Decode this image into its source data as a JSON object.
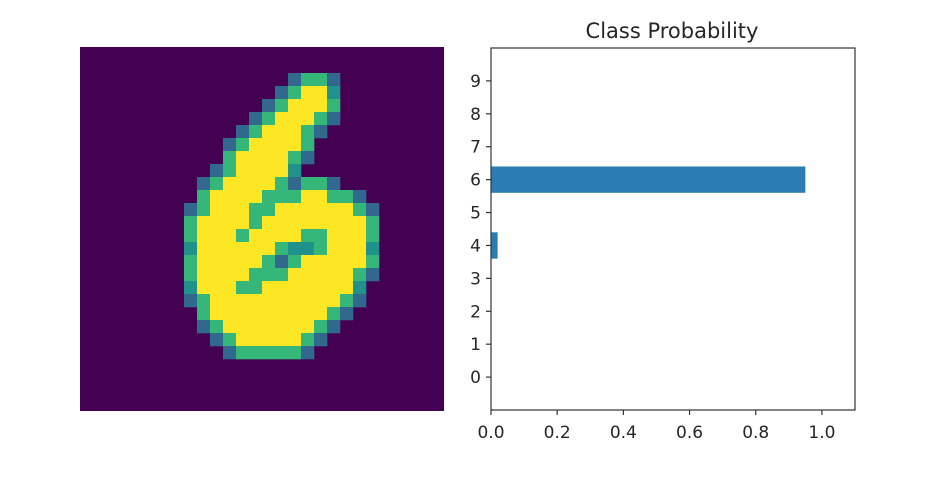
{
  "image_panel": {
    "digit_shown": "6",
    "background_color": "#440154",
    "stroke_color": "#fde725",
    "edge_colors": [
      "#35b779",
      "#21918c",
      "#31688e"
    ]
  },
  "chart_data": {
    "type": "bar",
    "orientation": "horizontal",
    "title": "Class Probability",
    "xlabel": "",
    "ylabel": "",
    "categories": [
      "0",
      "1",
      "2",
      "3",
      "4",
      "5",
      "6",
      "7",
      "8",
      "9"
    ],
    "values": [
      0,
      0,
      0,
      0,
      0.02,
      0,
      0.95,
      0,
      0,
      0
    ],
    "xlim": [
      0,
      1.1
    ],
    "ylim": [
      -1,
      10
    ],
    "xticks": [
      "0.0",
      "0.2",
      "0.4",
      "0.6",
      "0.8",
      "1.0"
    ],
    "bar_color": "#2b7bb4",
    "grid": false,
    "legend": "none"
  }
}
